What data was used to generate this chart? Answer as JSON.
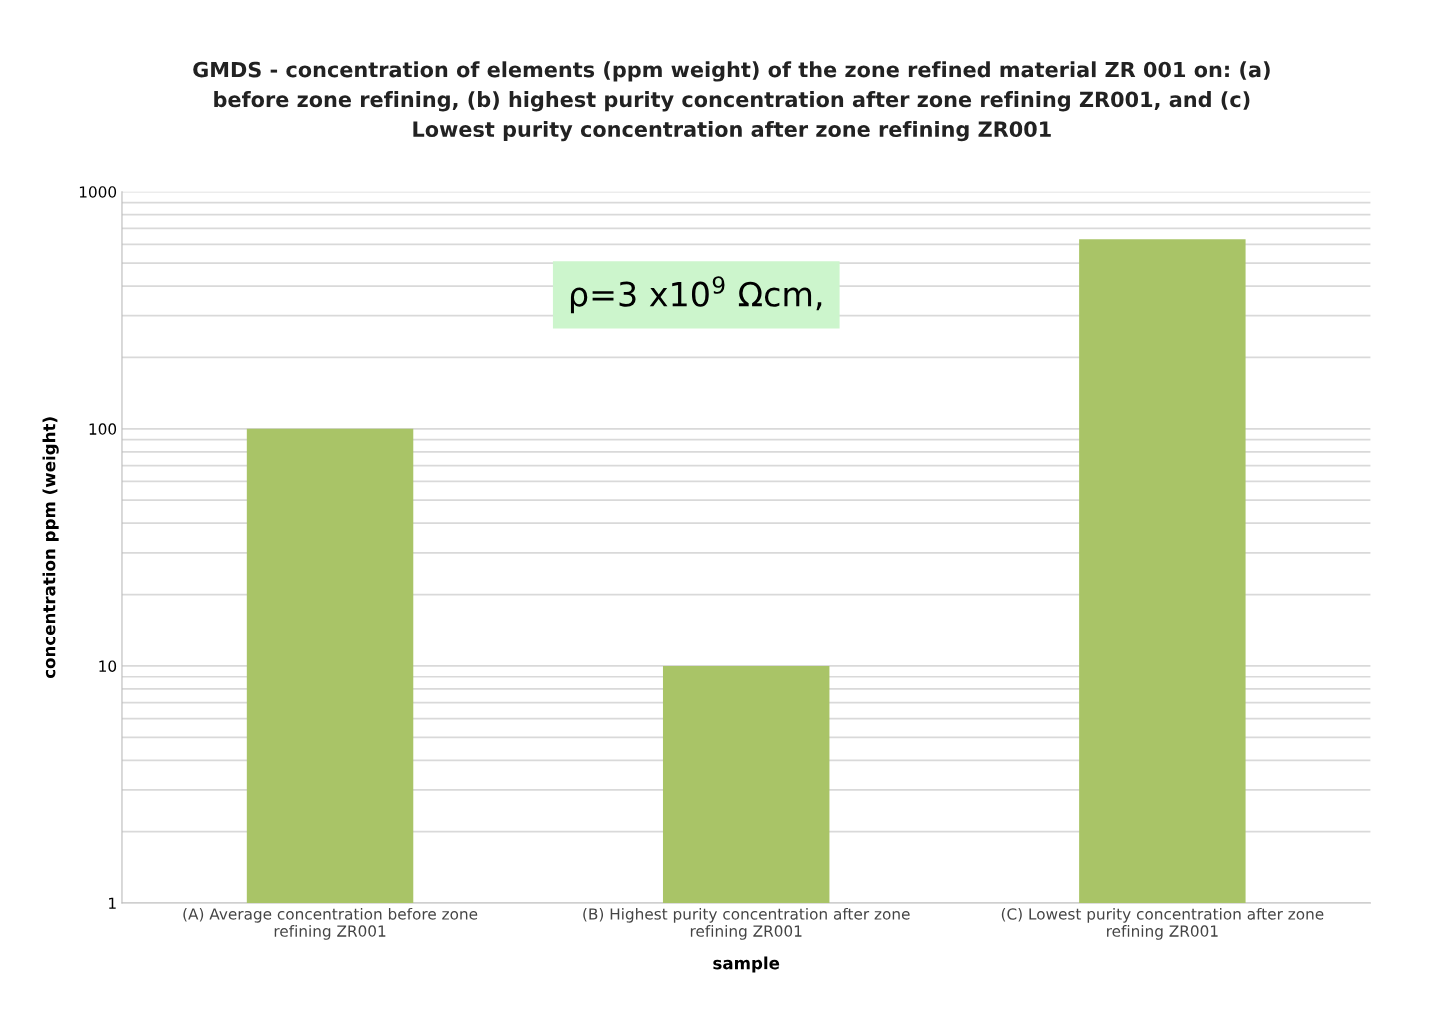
{
  "chart_data": {
    "type": "bar",
    "title": "GMDS - concentration of elements (ppm weight) of the zone refined material ZR 001 on: (a)\nbefore zone refining, (b) highest purity concentration after zone refining ZR001, and (c)\nLowest purity concentration after zone refining ZR001",
    "categories": [
      "(A) Average concentration before zone\nrefining ZR001",
      "(B) Highest purity concentration after zone\nrefining ZR001",
      "(C) Lowest purity concentration after zone\nrefining ZR001"
    ],
    "values": [
      100,
      10,
      630
    ],
    "color": "#a9c467",
    "xlabel": "sample",
    "ylabel": "concentration ppm (weight)",
    "log": "y",
    "ylim": [
      1,
      1000
    ],
    "yticks": [
      1,
      10,
      100,
      1000
    ],
    "grid": "y",
    "annotations": [
      "ρ=3 x10$^{9}$ Ωcm,"
    ]
  }
}
